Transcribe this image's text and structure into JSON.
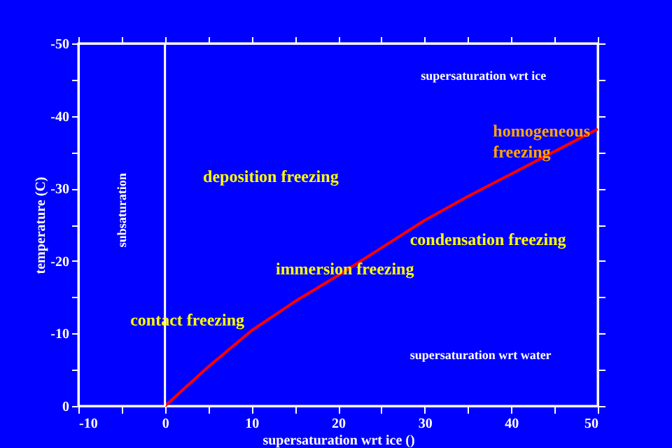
{
  "chart_data": {
    "type": "line",
    "xlabel": "supersaturation wrt ice ()",
    "ylabel": "temperature (C)",
    "x": [
      0,
      5,
      10,
      15,
      20,
      25,
      30,
      35,
      40,
      45,
      50
    ],
    "series": [
      {
        "color": "#ff0000",
        "values": [
          0,
          -5.4,
          -10.4,
          -14.4,
          -18.0,
          -21.8,
          -25.6,
          -28.9,
          -32.0,
          -35.1,
          -38.2
        ]
      }
    ],
    "xlim": [
      -10,
      50
    ],
    "xticks": [
      -10,
      {
        "value": -5,
        "label": null
      },
      0,
      {
        "value": 5,
        "label": null
      },
      10,
      {
        "value": 15,
        "label": null
      },
      20,
      {
        "value": 25,
        "label": null
      },
      30,
      {
        "value": 35,
        "label": null
      },
      40,
      {
        "value": 45,
        "label": null
      },
      50
    ],
    "ylim": [
      0,
      -50
    ],
    "yticks": [
      0,
      {
        "value": -5,
        "label": null
      },
      -10,
      {
        "value": -15,
        "label": null
      },
      -20,
      {
        "value": -25,
        "label": null
      },
      -30,
      {
        "value": -35,
        "label": null
      },
      -40,
      {
        "value": -45,
        "label": null
      },
      -50
    ],
    "ref_lines": [
      {
        "axis": "x",
        "value": 0,
        "color": "#ffffff"
      }
    ],
    "annotations": [
      "supersaturation wrt ice",
      "homogeneous freezing",
      "deposition freezing",
      "subsaturation",
      "condensation freezing",
      "immersion freezing",
      "contact freezing",
      "supersaturation wrt water"
    ],
    "grid": false,
    "marker": "none",
    "line_style": "solid"
  }
}
